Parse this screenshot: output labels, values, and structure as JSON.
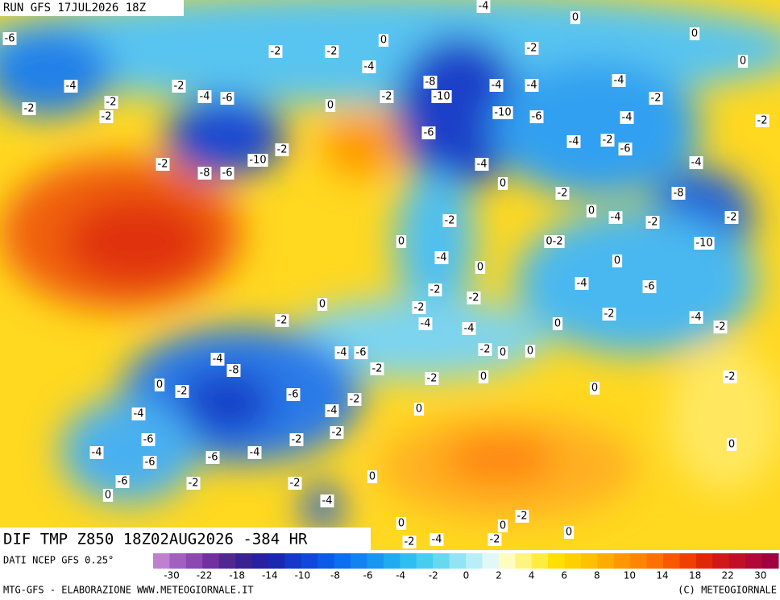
{
  "header": {
    "run": "RUN GFS 17JUL2026 18Z"
  },
  "map": {
    "title": "DIF TMP Z850 18Z02AUG2026 -384 HR",
    "contour_labels": [
      "-4",
      "0",
      "0",
      "0",
      "-6",
      "-2",
      "-2",
      "-4",
      "-2",
      "0",
      "-4",
      "-2",
      "-8",
      "-10",
      "-4",
      "-4",
      "-4",
      "-4",
      "-6",
      "-2",
      "0",
      "-2",
      "-2",
      "-2",
      "-10",
      "-6",
      "-4",
      "-2",
      "-2",
      "-6",
      "-4",
      "-2",
      "-6",
      "-2",
      "-10",
      "-2",
      "-8",
      "-6",
      "-4",
      "-4",
      "0",
      "-2",
      "-8",
      "0",
      "-4",
      "-2",
      "-2",
      "-2",
      "0",
      "0-2",
      "-10",
      "-4",
      "0",
      "0",
      "-4",
      "-6",
      "-2",
      "0",
      "-2",
      "-2",
      "-2",
      "-4",
      "-4",
      "0",
      "-2",
      "-4",
      "-2",
      "-4",
      "-6",
      "-2",
      "0",
      "0",
      "-4",
      "-8",
      "-2",
      "-2",
      "0",
      "-2",
      "0",
      "-2",
      "-6",
      "-2",
      "0",
      "-4",
      "0",
      "-4",
      "-6",
      "-2",
      "-2",
      "0",
      "-4",
      "-4",
      "-6",
      "-6",
      "0",
      "-6",
      "-2",
      "-2",
      "0",
      "-4",
      "-2",
      "0",
      "0",
      "0",
      "-2",
      "-4",
      "-2"
    ]
  },
  "colorbar": {
    "colors": [
      "#c080d0",
      "#a060c0",
      "#8a48b0",
      "#7030a0",
      "#502890",
      "#3a2090",
      "#2820a0",
      "#1a28b0",
      "#1438c8",
      "#1048dc",
      "#0c5ae8",
      "#0c6ef0",
      "#1282f0",
      "#1896f0",
      "#20aaf0",
      "#30bef0",
      "#48ccf0",
      "#68d8f0",
      "#90e4f4",
      "#b8eef8",
      "#e0f8f8",
      "#fffcc0",
      "#fff480",
      "#ffec40",
      "#ffe000",
      "#ffd000",
      "#ffc000",
      "#ffac00",
      "#ff9800",
      "#ff8400",
      "#ff7000",
      "#f85800",
      "#f04000",
      "#e02808",
      "#d01818",
      "#c01028",
      "#b00838",
      "#a00040"
    ],
    "ticks": [
      -30,
      -22,
      -18,
      -14,
      -10,
      -8,
      -6,
      -4,
      -2,
      0,
      2,
      4,
      6,
      8,
      10,
      14,
      18,
      22,
      30
    ]
  },
  "footer": {
    "source": "DATI NCEP GFS 0.25°",
    "credit": "MTG-GFS - ELABORAZIONE WWW.METEOGIORNALE.IT",
    "copyright": "(C) METEOGIORNALE"
  }
}
